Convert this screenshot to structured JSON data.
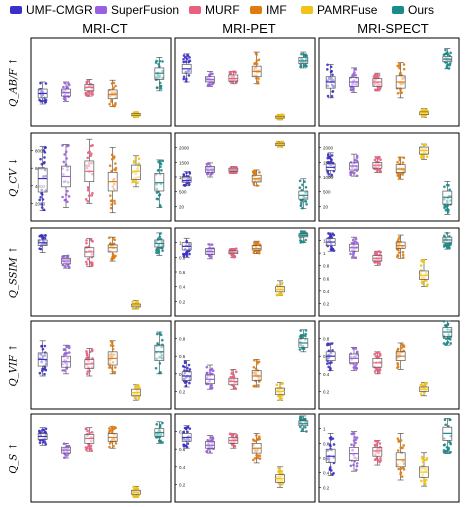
{
  "legend": [
    {
      "name": "UMF-CMGR",
      "color": "#3b2fc9"
    },
    {
      "name": "SuperFusion",
      "color": "#9a5fe0"
    },
    {
      "name": "MURF",
      "color": "#e8607e"
    },
    {
      "name": "IMF",
      "color": "#e07b10"
    },
    {
      "name": "PAMRFuse",
      "color": "#f2c218"
    },
    {
      "name": "Ours",
      "color": "#1a8a8a"
    }
  ],
  "columns": [
    "MRI-CT",
    "MRI-PET",
    "MRI-SPECT"
  ],
  "row_labels": [
    "Q_AB/F ↑",
    "Q_CV ↓",
    "Q_SSIM ↑",
    "Q_VIF ↑",
    "Q_S ↑"
  ],
  "chart_data": [
    {
      "type": "box",
      "row": "Q_AB/F",
      "column": "MRI-CT",
      "ylim": [
        0,
        1
      ],
      "tick_labels": [],
      "boxes": [
        [
          0.25,
          0.32,
          0.37,
          0.42,
          0.5
        ],
        [
          0.28,
          0.34,
          0.38,
          0.42,
          0.5
        ],
        [
          0.34,
          0.4,
          0.44,
          0.47,
          0.53
        ],
        [
          0.22,
          0.31,
          0.36,
          0.41,
          0.52
        ],
        [
          0.1,
          0.12,
          0.13,
          0.14,
          0.16
        ],
        [
          0.4,
          0.53,
          0.6,
          0.66,
          0.78
        ]
      ]
    },
    {
      "type": "box",
      "row": "Q_AB/F",
      "column": "MRI-PET",
      "ylim": [
        0,
        1
      ],
      "tick_labels": [],
      "boxes": [
        [
          0.5,
          0.6,
          0.65,
          0.7,
          0.82
        ],
        [
          0.45,
          0.5,
          0.53,
          0.56,
          0.62
        ],
        [
          0.48,
          0.51,
          0.54,
          0.58,
          0.62
        ],
        [
          0.48,
          0.56,
          0.62,
          0.68,
          0.84
        ],
        [
          0.07,
          0.09,
          0.1,
          0.11,
          0.13
        ],
        [
          0.66,
          0.71,
          0.74,
          0.78,
          0.84
        ]
      ]
    },
    {
      "type": "box",
      "row": "Q_AB/F",
      "column": "MRI-SPECT",
      "ylim": [
        0,
        1
      ],
      "tick_labels": [],
      "boxes": [
        [
          0.32,
          0.43,
          0.5,
          0.56,
          0.7
        ],
        [
          0.38,
          0.45,
          0.5,
          0.55,
          0.66
        ],
        [
          0.4,
          0.45,
          0.5,
          0.54,
          0.6
        ],
        [
          0.32,
          0.43,
          0.5,
          0.57,
          0.72
        ],
        [
          0.1,
          0.13,
          0.15,
          0.16,
          0.2
        ],
        [
          0.65,
          0.73,
          0.76,
          0.79,
          0.88
        ]
      ]
    },
    {
      "type": "box",
      "row": "Q_CV",
      "column": "MRI-CT",
      "ylim": [
        500,
        9000
      ],
      "tick_labels": [
        "2000",
        "4000",
        "6000",
        "8000"
      ],
      "boxes": [
        [
          1500,
          3300,
          4600,
          5600,
          7700
        ],
        [
          1800,
          3800,
          4800,
          5800,
          7900
        ],
        [
          2200,
          4300,
          5300,
          6300,
          8400
        ],
        [
          1300,
          3400,
          4300,
          5200,
          7600
        ],
        [
          3800,
          4500,
          5300,
          5900,
          6800
        ],
        [
          1800,
          3400,
          4200,
          5100,
          6400
        ]
      ]
    },
    {
      "type": "box",
      "row": "Q_CV",
      "column": "MRI-PET",
      "ylim": [
        0,
        2500
      ],
      "tick_labels": [
        "20",
        "500",
        "1000",
        "1500",
        "2000"
      ],
      "boxes": [
        [
          1000,
          1100,
          1150,
          1250,
          1400
        ],
        [
          1250,
          1380,
          1450,
          1550,
          1650
        ],
        [
          1350,
          1410,
          1450,
          1500,
          1550
        ],
        [
          1000,
          1110,
          1200,
          1300,
          1450
        ],
        [
          2100,
          2140,
          2180,
          2210,
          2260
        ],
        [
          350,
          620,
          730,
          850,
          1200
        ]
      ]
    },
    {
      "type": "box",
      "row": "Q_CV",
      "column": "MRI-SPECT",
      "ylim": [
        0,
        2000
      ],
      "tick_labels": [
        "20",
        "500",
        "1000",
        "1500",
        "2000"
      ],
      "boxes": [
        [
          1000,
          1150,
          1220,
          1300,
          1550
        ],
        [
          1020,
          1160,
          1250,
          1320,
          1520
        ],
        [
          1100,
          1200,
          1270,
          1330,
          1460
        ],
        [
          950,
          1100,
          1180,
          1280,
          1450
        ],
        [
          1400,
          1520,
          1600,
          1680,
          1750
        ],
        [
          150,
          380,
          540,
          680,
          900
        ]
      ]
    },
    {
      "type": "box",
      "row": "Q_SSIM",
      "column": "MRI-CT",
      "ylim": [
        0,
        1.25
      ],
      "tick_labels": [],
      "boxes": [
        [
          0.9,
          1.0,
          1.04,
          1.08,
          1.15
        ],
        [
          0.68,
          0.74,
          0.78,
          0.82,
          0.86
        ],
        [
          0.7,
          0.84,
          0.91,
          0.97,
          1.1
        ],
        [
          0.78,
          0.91,
          0.97,
          1.01,
          1.12
        ],
        [
          0.1,
          0.13,
          0.15,
          0.17,
          0.22
        ],
        [
          0.86,
          0.98,
          1.03,
          1.08,
          1.18
        ]
      ]
    },
    {
      "type": "box",
      "row": "Q_SSIM",
      "column": "MRI-PET",
      "ylim": [
        0,
        1.2
      ],
      "tick_labels": [
        "0.2",
        "0.4",
        "0.6",
        "0.8",
        "1"
      ],
      "boxes": [
        [
          0.8,
          0.9,
          0.95,
          1.0,
          1.06
        ],
        [
          0.78,
          0.84,
          0.88,
          0.92,
          0.98
        ],
        [
          0.8,
          0.85,
          0.87,
          0.89,
          0.92
        ],
        [
          0.85,
          0.9,
          0.92,
          0.96,
          1.02
        ],
        [
          0.28,
          0.33,
          0.36,
          0.4,
          0.48
        ],
        [
          1.0,
          1.08,
          1.1,
          1.12,
          1.16
        ]
      ]
    },
    {
      "type": "box",
      "row": "Q_SSIM",
      "column": "MRI-SPECT",
      "ylim": [
        0,
        1.25
      ],
      "tick_labels": [
        "0.2",
        "0.4",
        "0.6",
        "0.8",
        "1",
        "1.2"
      ],
      "boxes": [
        [
          0.92,
          1.0,
          1.05,
          1.1,
          1.18
        ],
        [
          0.82,
          0.92,
          0.97,
          1.02,
          1.12
        ],
        [
          0.72,
          0.78,
          0.82,
          0.86,
          0.92
        ],
        [
          0.82,
          0.96,
          1.0,
          1.05,
          1.15
        ],
        [
          0.42,
          0.52,
          0.58,
          0.64,
          0.8
        ],
        [
          0.95,
          1.04,
          1.08,
          1.12,
          1.18
        ]
      ]
    },
    {
      "type": "box",
      "row": "Q_VIF",
      "column": "MRI-CT",
      "ylim": [
        0,
        0.8
      ],
      "tick_labels": [],
      "boxes": [
        [
          0.3,
          0.39,
          0.45,
          0.51,
          0.62
        ],
        [
          0.32,
          0.38,
          0.43,
          0.48,
          0.58
        ],
        [
          0.3,
          0.37,
          0.41,
          0.45,
          0.55
        ],
        [
          0.32,
          0.4,
          0.46,
          0.52,
          0.62
        ],
        [
          0.08,
          0.12,
          0.15,
          0.18,
          0.22
        ],
        [
          0.32,
          0.44,
          0.52,
          0.58,
          0.7
        ]
      ]
    },
    {
      "type": "box",
      "row": "Q_VIF",
      "column": "MRI-PET",
      "ylim": [
        0,
        0.8
      ],
      "tick_labels": [
        "0.2",
        "0.4",
        "0.6",
        "0.8"
      ],
      "boxes": [
        [
          0.2,
          0.26,
          0.3,
          0.34,
          0.44
        ],
        [
          0.18,
          0.23,
          0.27,
          0.31,
          0.4
        ],
        [
          0.18,
          0.22,
          0.25,
          0.28,
          0.36
        ],
        [
          0.2,
          0.26,
          0.3,
          0.35,
          0.45
        ],
        [
          0.08,
          0.13,
          0.16,
          0.19,
          0.24
        ],
        [
          0.52,
          0.56,
          0.6,
          0.64,
          0.72
        ]
      ]
    },
    {
      "type": "box",
      "row": "Q_VIF",
      "column": "MRI-SPECT",
      "ylim": [
        0,
        0.8
      ],
      "tick_labels": [
        "0.2",
        "0.4",
        "0.6",
        "0.8"
      ],
      "boxes": [
        [
          0.35,
          0.44,
          0.48,
          0.52,
          0.6
        ],
        [
          0.35,
          0.42,
          0.46,
          0.5,
          0.56
        ],
        [
          0.32,
          0.38,
          0.42,
          0.46,
          0.52
        ],
        [
          0.36,
          0.44,
          0.48,
          0.52,
          0.6
        ],
        [
          0.12,
          0.16,
          0.18,
          0.2,
          0.24
        ],
        [
          0.58,
          0.66,
          0.7,
          0.74,
          0.8
        ]
      ]
    },
    {
      "type": "box",
      "row": "Q_S",
      "column": "MRI-CT",
      "ylim": [
        0,
        0.9
      ],
      "tick_labels": [],
      "boxes": [
        [
          0.58,
          0.64,
          0.67,
          0.7,
          0.76
        ],
        [
          0.45,
          0.5,
          0.53,
          0.56,
          0.6
        ],
        [
          0.52,
          0.6,
          0.65,
          0.69,
          0.76
        ],
        [
          0.55,
          0.62,
          0.66,
          0.7,
          0.77
        ],
        [
          0.05,
          0.08,
          0.1,
          0.12,
          0.16
        ],
        [
          0.6,
          0.67,
          0.71,
          0.75,
          0.82
        ]
      ]
    },
    {
      "type": "box",
      "row": "Q_S",
      "column": "MRI-PET",
      "ylim": [
        0,
        0.9
      ],
      "tick_labels": [
        "0.2",
        "0.4",
        "0.6",
        "0.8"
      ],
      "boxes": [
        [
          0.55,
          0.62,
          0.66,
          0.7,
          0.78
        ],
        [
          0.5,
          0.55,
          0.58,
          0.62,
          0.68
        ],
        [
          0.55,
          0.6,
          0.63,
          0.66,
          0.7
        ],
        [
          0.4,
          0.5,
          0.55,
          0.6,
          0.7
        ],
        [
          0.15,
          0.2,
          0.24,
          0.28,
          0.36
        ],
        [
          0.72,
          0.78,
          0.8,
          0.83,
          0.88
        ]
      ]
    },
    {
      "type": "box",
      "row": "Q_S",
      "column": "MRI-SPECT",
      "ylim": [
        0,
        1
      ],
      "tick_labels": [
        "0.2",
        "0.4",
        "0.6",
        "0.8",
        "1"
      ],
      "boxes": [
        [
          0.3,
          0.45,
          0.52,
          0.6,
          0.78
        ],
        [
          0.35,
          0.47,
          0.55,
          0.62,
          0.8
        ],
        [
          0.42,
          0.52,
          0.58,
          0.62,
          0.7
        ],
        [
          0.25,
          0.4,
          0.48,
          0.56,
          0.78
        ],
        [
          0.18,
          0.28,
          0.34,
          0.4,
          0.56
        ],
        [
          0.55,
          0.7,
          0.78,
          0.85,
          0.95
        ]
      ]
    }
  ]
}
